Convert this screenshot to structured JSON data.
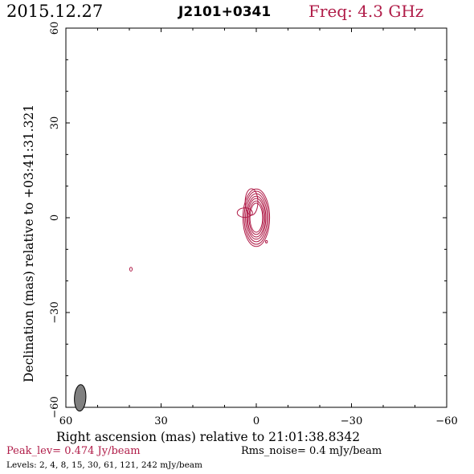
{
  "header": {
    "date": "2015.12.27",
    "source": "J2101+0341",
    "freq": "Freq: 4.3 GHz"
  },
  "footer": {
    "peak": "Peak_lev=  0.474 Jy/beam",
    "rms": "Rms_noise=   0.4 mJy/beam",
    "levels": "Levels:   2,    4,    8,   15,   30,   61,  121,  242  mJy/beam"
  },
  "colors": {
    "contour": "#b01c48",
    "beam": "#808080",
    "axes": "#000000"
  },
  "chart_data": {
    "type": "contour",
    "title": "J2101+0341",
    "xlabel": "Right ascension (mas) relative to 21:01:38.8342",
    "ylabel": "Declination (mas) relative to +03:41:31.321",
    "xlim": [
      60,
      -60
    ],
    "ylim": [
      -60,
      60
    ],
    "xticks": [
      60,
      30,
      0,
      -30,
      -60
    ],
    "yticks": [
      60,
      30,
      0,
      -30,
      -60
    ],
    "xtick_labels": [
      "60",
      "30",
      "0",
      "−30",
      "−60"
    ],
    "ytick_labels": [
      "60",
      "30",
      "0",
      "−30",
      "−60"
    ],
    "peak_jy_per_beam": 0.474,
    "rms_mjy_per_beam": 0.4,
    "levels_mjy_per_beam": [
      2,
      4,
      8,
      15,
      30,
      61,
      121,
      242
    ],
    "beam": {
      "x": 55.5,
      "y": -57,
      "major_mas": 4.2,
      "minor_mas": 1.8,
      "pa_deg": 3
    },
    "components": [
      {
        "x": 0,
        "y": 0,
        "levels": [
          {
            "w": 2.0,
            "h": 4.6
          },
          {
            "w": 2.3,
            "h": 5.3
          },
          {
            "w": 2.7,
            "h": 6.1
          },
          {
            "w": 3.0,
            "h": 6.8
          },
          {
            "w": 3.4,
            "h": 7.6
          },
          {
            "w": 3.8,
            "h": 8.4
          },
          {
            "w": 4.2,
            "h": 9.1
          }
        ]
      },
      {
        "x": 1.5,
        "y": 5.0,
        "levels": [
          {
            "w": 2.0,
            "h": 4.2
          }
        ]
      },
      {
        "x": 3.6,
        "y": 1.6,
        "levels": [
          {
            "w": 2.4,
            "h": 1.5
          }
        ]
      }
    ],
    "islands": [
      {
        "x": -3.2,
        "y": -7.6,
        "w": 0.3,
        "h": 0.4
      },
      {
        "x": 39.5,
        "y": -16.3,
        "w": 0.4,
        "h": 0.6
      }
    ]
  }
}
